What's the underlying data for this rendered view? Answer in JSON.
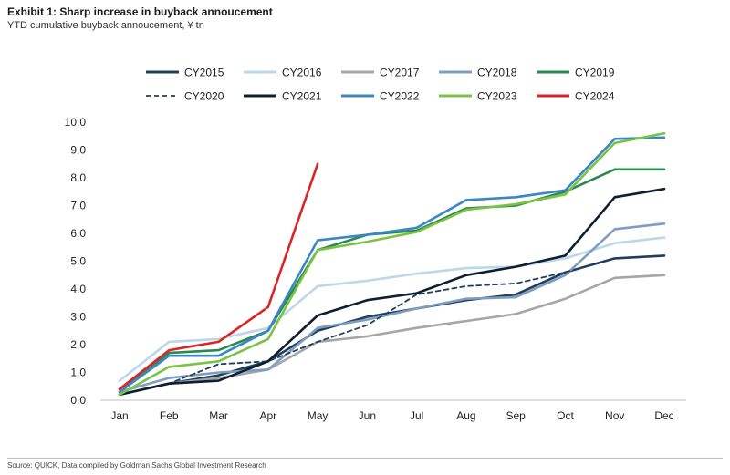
{
  "exhibit": {
    "title": "Exhibit 1: Sharp increase in buyback annoucement",
    "subtitle": "YTD cumulative buyback annoucement, ¥ tn",
    "source": "Source: QUICK, Data compiled by Goldman Sachs Global Investment Research"
  },
  "chart_data": {
    "type": "line",
    "title": "Exhibit 1: Sharp increase in buyback annoucement",
    "subtitle": "YTD cumulative buyback annoucement, ¥ tn",
    "xlabel": "",
    "ylabel": "",
    "categories": [
      "Jan",
      "Feb",
      "Mar",
      "Apr",
      "May",
      "Jun",
      "Jul",
      "Aug",
      "Sep",
      "Oct",
      "Nov",
      "Dec"
    ],
    "ylim": [
      0,
      10
    ],
    "yticks": [
      "0.0",
      "1.0",
      "2.0",
      "3.0",
      "4.0",
      "5.0",
      "6.0",
      "7.0",
      "8.0",
      "9.0",
      "10.0"
    ],
    "grid": false,
    "legend_position": "top",
    "series": [
      {
        "name": "CY2015",
        "color": "#1f3f5b",
        "dash": false,
        "values": [
          0.2,
          0.6,
          0.9,
          1.4,
          2.5,
          3.0,
          3.3,
          3.6,
          3.8,
          4.6,
          5.1,
          5.2
        ]
      },
      {
        "name": "CY2016",
        "color": "#bcd7ea",
        "dash": false,
        "values": [
          0.7,
          2.1,
          2.2,
          2.6,
          4.1,
          4.3,
          4.55,
          4.75,
          4.8,
          5.1,
          5.65,
          5.85
        ]
      },
      {
        "name": "CY2017",
        "color": "#a6a6a6",
        "dash": false,
        "values": [
          0.2,
          0.6,
          0.8,
          1.1,
          2.1,
          2.3,
          2.6,
          2.85,
          3.1,
          3.65,
          4.4,
          4.5
        ]
      },
      {
        "name": "CY2018",
        "color": "#7f9ebf",
        "dash": false,
        "values": [
          0.3,
          0.8,
          1.0,
          1.1,
          2.6,
          2.9,
          3.3,
          3.65,
          3.7,
          4.5,
          6.15,
          6.35
        ]
      },
      {
        "name": "CY2019",
        "color": "#2a8a4e",
        "dash": false,
        "values": [
          0.4,
          1.7,
          1.8,
          2.5,
          5.4,
          5.95,
          6.1,
          6.9,
          7.0,
          7.5,
          8.3,
          8.3
        ]
      },
      {
        "name": "CY2020",
        "color": "#1f3f5b",
        "dash": true,
        "values": [
          0.2,
          0.6,
          1.3,
          1.4,
          2.1,
          2.7,
          3.8,
          4.1,
          4.2,
          4.6,
          5.1,
          5.2
        ]
      },
      {
        "name": "CY2021",
        "color": "#0d1f33",
        "dash": false,
        "values": [
          0.2,
          0.6,
          0.7,
          1.4,
          3.05,
          3.6,
          3.85,
          4.5,
          4.8,
          5.2,
          7.3,
          7.6
        ]
      },
      {
        "name": "CY2022",
        "color": "#3b86c4",
        "dash": false,
        "values": [
          0.3,
          1.6,
          1.6,
          2.5,
          5.75,
          5.95,
          6.2,
          7.2,
          7.3,
          7.55,
          9.4,
          9.45
        ]
      },
      {
        "name": "CY2023",
        "color": "#7cc243",
        "dash": false,
        "values": [
          0.2,
          1.2,
          1.4,
          2.2,
          5.4,
          5.7,
          6.05,
          6.85,
          7.05,
          7.4,
          9.25,
          9.6
        ]
      },
      {
        "name": "CY2024",
        "color": "#d92525",
        "dash": false,
        "values": [
          0.4,
          1.8,
          2.1,
          3.35,
          8.5,
          null,
          null,
          null,
          null,
          null,
          null,
          null
        ]
      }
    ]
  }
}
